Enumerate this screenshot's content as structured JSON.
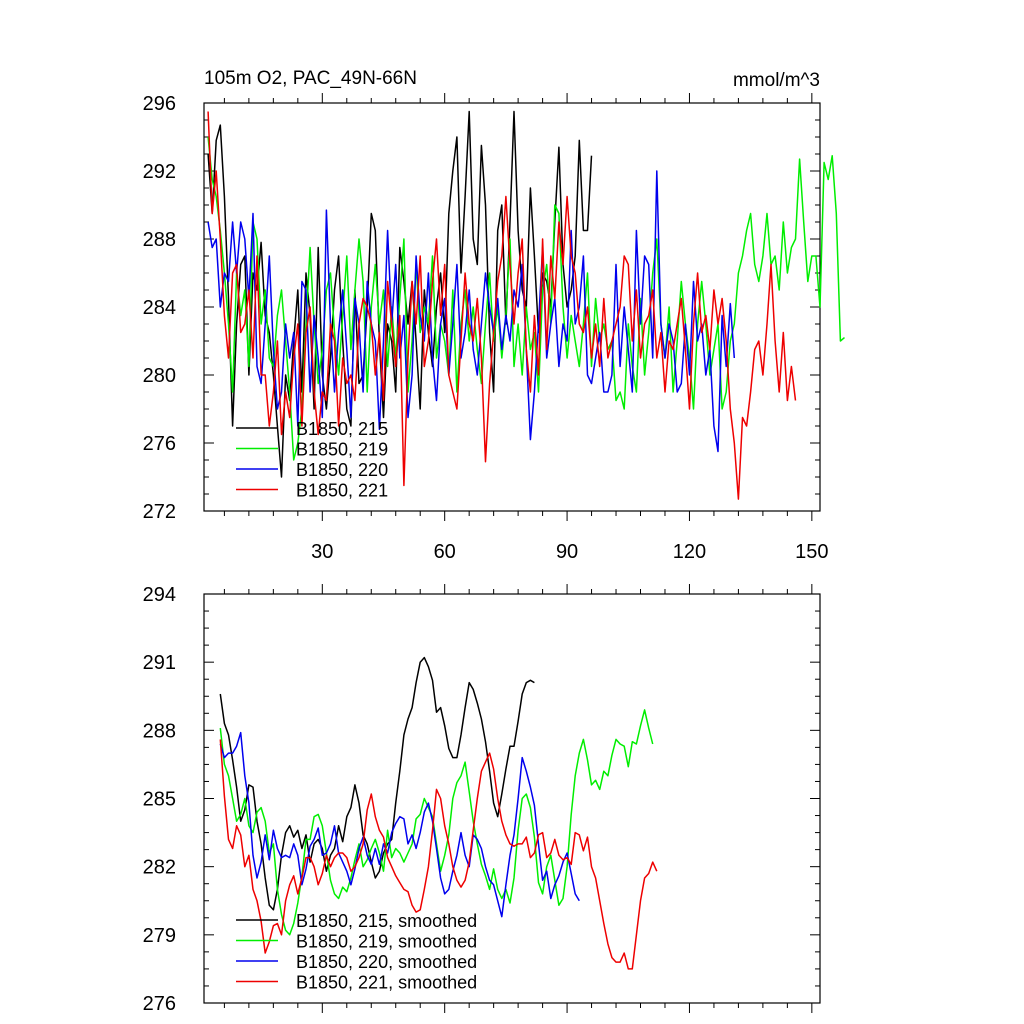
{
  "chart_data": [
    {
      "type": "line",
      "title": "105m O2, PAC_49N-66N",
      "units": "mmol/m^3",
      "xlim": [
        1,
        152
      ],
      "ylim": [
        272,
        296
      ],
      "xticks": [
        30,
        60,
        90,
        120,
        150
      ],
      "yticks": [
        272,
        276,
        280,
        284,
        288,
        292,
        296
      ],
      "legend_position": "bottom-left",
      "series": [
        {
          "name": "B1850, 215",
          "color": "#000000",
          "x_start": 2,
          "values": [
            293.0,
            289.5,
            293.8,
            294.7,
            290.5,
            284.5,
            277.0,
            283.0,
            286.5,
            287.0,
            280.0,
            286.0,
            285.0,
            287.8,
            283.5,
            282.5,
            280.0,
            277.0,
            274.0,
            280.0,
            278.5,
            282.0,
            285.0,
            279.0,
            286.0,
            283.5,
            278.0,
            287.5,
            280.0,
            278.0,
            281.0,
            285.0,
            287.0,
            282.0,
            278.0,
            277.0,
            285.0,
            279.5,
            280.0,
            284.0,
            289.5,
            288.5,
            282.0,
            277.5,
            283.0,
            282.0,
            279.0,
            287.5,
            285.5,
            283.0,
            285.5,
            282.0,
            278.0,
            285.0,
            282.5,
            280.5,
            284.0,
            286.0,
            282.5,
            289.5,
            292.0,
            294.0,
            286.0,
            290.5,
            295.5,
            288.0,
            286.5,
            293.5,
            290.0,
            282.5,
            279.0,
            288.5,
            290.0,
            283.0,
            289.0,
            295.5,
            288.5,
            285.0,
            284.0,
            291.0,
            287.0,
            282.5,
            286.0,
            285.5,
            284.0,
            289.0,
            293.4,
            286.5,
            284.0,
            285.0,
            287.0,
            293.8,
            288.5,
            288.5,
            292.9
          ]
        },
        {
          "name": "B1850, 219",
          "color": "#00ee00",
          "x_start": 2,
          "values": [
            294.0,
            291.5,
            290.5,
            288.5,
            286.0,
            283.0,
            279.0,
            286.0,
            283.5,
            285.0,
            280.5,
            289.0,
            288.0,
            283.0,
            285.0,
            281.0,
            280.5,
            283.5,
            285.0,
            282.0,
            279.0,
            275.0,
            276.0,
            278.0,
            283.0,
            287.5,
            283.0,
            279.5,
            281.5,
            285.0,
            286.0,
            282.5,
            280.0,
            283.5,
            287.0,
            281.5,
            285.0,
            288.0,
            285.5,
            279.0,
            284.0,
            286.5,
            283.0,
            285.0,
            280.5,
            284.0,
            281.0,
            284.5,
            288.0,
            279.0,
            282.0,
            286.5,
            282.5,
            284.0,
            283.0,
            287.0,
            281.0,
            283.0,
            282.0,
            280.0,
            285.0,
            279.0,
            283.0,
            285.0,
            282.0,
            284.0,
            281.5,
            279.5,
            283.0,
            286.0,
            282.0,
            284.0,
            281.0,
            283.5,
            288.0,
            280.5,
            283.0,
            280.0,
            284.0,
            281.5,
            282.5,
            279.0,
            285.0,
            286.5,
            283.0,
            290.0,
            289.5,
            284.0,
            281.0,
            283.5,
            282.0,
            280.5,
            283.0,
            286.0,
            280.5,
            284.5,
            282.0,
            283.0,
            281.5,
            282.0,
            278.5,
            279.0,
            278.0,
            283.0,
            280.5,
            279.0,
            284.5,
            280.0,
            282.5,
            286.0,
            288.0,
            283.0,
            281.0,
            284.0,
            279.0,
            282.0,
            285.5,
            283.0,
            281.0,
            278.0,
            283.0,
            285.5,
            283.0,
            280.0,
            281.5,
            283.0,
            278.0,
            279.0,
            282.0,
            283.0,
            286.0,
            287.0,
            288.5,
            289.5,
            286.5,
            285.5,
            287.0,
            289.5,
            286.5,
            287.0,
            285.0,
            289.0,
            286.0,
            287.5,
            288.0,
            292.7,
            289.0,
            285.5,
            287.0,
            287.0,
            284.0,
            292.5,
            291.5,
            292.9,
            289.5,
            282.0,
            282.2
          ]
        },
        {
          "name": "B1850, 220",
          "color": "#0000ee",
          "x_start": 2,
          "values": [
            289.0,
            287.5,
            288.0,
            284.0,
            286.0,
            285.5,
            289.0,
            286.0,
            289.0,
            288.0,
            284.5,
            289.5,
            280.5,
            279.5,
            283.0,
            287.0,
            281.5,
            278.0,
            279.0,
            283.0,
            281.0,
            282.5,
            277.0,
            285.5,
            285.0,
            279.0,
            283.5,
            281.0,
            277.5,
            289.7,
            283.0,
            279.0,
            282.5,
            285.0,
            281.5,
            277.5,
            284.5,
            283.0,
            279.0,
            285.5,
            283.0,
            282.0,
            276.8,
            282.0,
            288.5,
            283.0,
            286.5,
            281.0,
            283.5,
            277.5,
            280.0,
            287.0,
            283.5,
            282.0,
            286.0,
            281.0,
            278.5,
            283.0,
            284.5,
            280.0,
            283.0,
            286.5,
            281.0,
            282.5,
            285.0,
            281.5,
            280.0,
            283.0,
            286.0,
            284.0,
            282.5,
            284.5,
            281.5,
            283.5,
            282.0,
            285.0,
            284.0,
            286.5,
            281.5,
            276.2,
            279.0,
            283.0,
            287.5,
            281.0,
            283.0,
            284.5,
            280.5,
            283.0,
            282.0,
            288.5,
            283.0,
            284.0,
            287.0,
            280.0,
            279.5,
            281.0,
            282.5,
            279.0,
            279.0,
            280.0,
            286.5,
            280.5,
            284.0,
            281.5,
            279.0,
            288.5,
            283.0,
            287.0,
            286.5,
            281.0,
            292.0,
            283.0,
            281.0,
            283.0,
            282.0,
            279.0,
            279.5,
            283.0,
            280.0,
            285.5,
            282.0,
            283.0,
            280.0,
            281.5,
            277.0,
            275.5,
            283.5,
            280.5,
            284.2,
            281.0
          ]
        },
        {
          "name": "B1850, 221",
          "color": "#ee0000",
          "x_start": 2,
          "values": [
            295.5,
            289.5,
            292.0,
            288.0,
            283.5,
            281.0,
            286.0,
            286.5,
            282.5,
            283.0,
            285.0,
            281.0,
            287.0,
            280.0,
            280.0,
            277.0,
            279.0,
            282.0,
            276.5,
            279.0,
            277.5,
            281.0,
            283.0,
            277.0,
            282.5,
            284.0,
            279.0,
            276.5,
            279.0,
            278.5,
            283.0,
            282.0,
            277.0,
            281.0,
            279.5,
            280.0,
            278.5,
            283.0,
            284.5,
            284.0,
            283.0,
            280.0,
            282.5,
            278.5,
            285.5,
            283.0,
            280.5,
            283.5,
            273.5,
            281.0,
            285.5,
            283.0,
            287.0,
            280.5,
            282.0,
            285.5,
            288.0,
            283.5,
            286.5,
            280.0,
            279.0,
            278.0,
            282.0,
            286.0,
            283.0,
            282.0,
            284.5,
            281.0,
            274.9,
            279.5,
            282.5,
            285.5,
            287.0,
            290.5,
            286.5,
            283.0,
            286.0,
            288.0,
            281.5,
            279.0,
            283.5,
            280.0,
            288.0,
            281.5,
            287.0,
            284.5,
            289.0,
            286.5,
            290.5,
            287.0,
            286.0,
            283.0,
            282.5,
            284.0,
            281.0,
            283.0,
            280.5,
            284.5,
            281.0,
            282.0,
            283.0,
            284.0,
            287.0,
            286.5,
            282.0,
            285.0,
            281.0,
            283.0,
            283.5,
            285.0,
            281.0,
            282.5,
            279.0,
            282.0,
            281.5,
            283.0,
            284.5,
            281.5,
            278.0,
            283.0,
            286.0,
            282.5,
            283.5,
            281.5,
            285.0,
            283.0,
            284.5,
            282.0,
            278.0,
            276.0,
            272.7,
            277.5,
            277.0,
            279.0,
            281.5,
            282.0,
            280.0,
            283.0,
            286.5,
            282.0,
            279.0,
            282.5,
            278.5,
            280.5,
            278.5
          ]
        }
      ]
    },
    {
      "type": "line",
      "title": "",
      "xlim": [
        1,
        152
      ],
      "ylim": [
        276,
        294
      ],
      "xticks": [
        30,
        60,
        90,
        120,
        150
      ],
      "yticks": [
        276,
        279,
        282,
        285,
        288,
        291,
        294
      ],
      "legend_position": "bottom-left",
      "series": [
        {
          "name": "B1850, 215, smoothed",
          "color": "#000000",
          "x_start": 5,
          "values": [
            289.6,
            288.3,
            287.8,
            286.7,
            285.5,
            284.0,
            284.5,
            285.6,
            285.5,
            284.0,
            283.0,
            281.5,
            280.3,
            280.1,
            281.0,
            282.5,
            283.5,
            283.8,
            283.3,
            283.6,
            282.8,
            283.4,
            282.2,
            283.0,
            283.2,
            282.8,
            281.8,
            282.5,
            282.8,
            283.8,
            283.1,
            284.2,
            284.6,
            285.6,
            284.8,
            283.4,
            283.0,
            282.2,
            281.5,
            281.8,
            282.6,
            283.0,
            283.2,
            284.8,
            286.2,
            287.8,
            288.5,
            289.0,
            290.1,
            291.0,
            291.2,
            290.8,
            290.2,
            288.8,
            289.0,
            288.2,
            287.2,
            286.8,
            286.8,
            287.8,
            289.0,
            290.1,
            289.8,
            289.2,
            288.5,
            287.5,
            286.2,
            284.8,
            284.2,
            285.2,
            286.3,
            287.3,
            287.3,
            288.4,
            289.6,
            290.1,
            290.2,
            290.1
          ]
        },
        {
          "name": "B1850, 219, smoothed",
          "color": "#00ee00",
          "x_start": 5,
          "values": [
            288.1,
            286.5,
            286.0,
            285.0,
            284.0,
            284.3,
            285.0,
            283.8,
            283.5,
            284.4,
            284.6,
            284.0,
            282.6,
            283.0,
            281.0,
            279.9,
            279.2,
            279.0,
            279.5,
            280.4,
            281.6,
            283.2,
            283.2,
            284.2,
            284.3,
            283.8,
            282.6,
            281.4,
            280.8,
            280.6,
            281.1,
            280.9,
            281.5,
            282.3,
            283.0,
            282.0,
            282.3,
            282.8,
            283.2,
            282.6,
            281.8,
            283.6,
            282.4,
            282.8,
            282.6,
            282.2,
            282.6,
            283.0,
            284.1,
            284.3,
            285.0,
            284.6,
            284.2,
            283.0,
            281.8,
            282.5,
            283.4,
            285.0,
            285.7,
            286.0,
            286.6,
            285.3,
            284.0,
            283.0,
            282.1,
            281.6,
            281.0,
            281.9,
            281.0,
            280.6,
            281.0,
            280.4,
            281.5,
            283.6,
            285.0,
            285.2,
            284.6,
            283.3,
            281.3,
            280.8,
            282.0,
            282.5,
            281.4,
            280.3,
            280.6,
            282.0,
            284.3,
            286.0,
            287.0,
            287.6,
            286.7,
            285.6,
            285.8,
            285.4,
            286.2,
            286.0,
            286.9,
            287.6,
            287.4,
            287.3,
            286.4,
            287.5,
            287.4,
            288.2,
            288.9,
            288.1,
            287.4
          ]
        },
        {
          "name": "B1850, 220, smoothed",
          "color": "#0000ee",
          "x_start": 5,
          "values": [
            287.4,
            286.8,
            287.0,
            287.0,
            287.3,
            287.9,
            286.0,
            284.8,
            282.5,
            281.5,
            282.2,
            283.4,
            282.3,
            283.6,
            282.8,
            282.4,
            282.5,
            282.4,
            283.0,
            282.5,
            281.2,
            281.9,
            282.9,
            283.2,
            283.7,
            282.5,
            282.6,
            283.0,
            283.8,
            282.6,
            282.2,
            281.8,
            281.2,
            281.9,
            282.8,
            283.3,
            282.5,
            282.1,
            282.8,
            282.1,
            283.0,
            282.6,
            283.5,
            283.9,
            284.2,
            284.1,
            283.0,
            283.4,
            282.8,
            283.5,
            284.4,
            284.8,
            284.0,
            282.8,
            281.5,
            280.8,
            281.0,
            281.8,
            282.5,
            283.5,
            282.5,
            282.0,
            283.4,
            283.2,
            282.8,
            282.0,
            281.4,
            281.2,
            280.5,
            279.8,
            281.2,
            282.5,
            283.4,
            285.0,
            286.8,
            286.2,
            285.5,
            284.7,
            283.0,
            281.4,
            281.8,
            280.6,
            281.2,
            281.6,
            282.2,
            282.6,
            281.7,
            280.8,
            280.5
          ]
        },
        {
          "name": "B1850, 221, smoothed",
          "color": "#ee0000",
          "x_start": 5,
          "values": [
            287.6,
            285.1,
            283.2,
            282.8,
            283.8,
            283.4,
            282.0,
            282.5,
            281.0,
            280.5,
            279.6,
            278.2,
            278.7,
            279.4,
            279.5,
            279.0,
            280.5,
            281.2,
            281.6,
            280.8,
            281.5,
            282.4,
            282.4,
            282.0,
            281.2,
            281.7,
            282.5,
            282.0,
            282.4,
            282.6,
            282.6,
            282.4,
            281.8,
            282.0,
            282.4,
            283.0,
            284.5,
            285.2,
            284.2,
            283.6,
            283.3,
            282.4,
            282.0,
            281.6,
            281.3,
            281.0,
            280.9,
            280.3,
            280.0,
            280.1,
            281.0,
            282.0,
            283.6,
            285.4,
            285.0,
            283.8,
            283.0,
            282.0,
            281.4,
            281.1,
            281.4,
            282.2,
            283.6,
            285.0,
            286.2,
            286.6,
            287.0,
            286.3,
            285.0,
            284.0,
            283.4,
            283.0,
            282.9,
            283.0,
            283.0,
            283.3,
            282.4,
            282.6,
            283.4,
            283.5,
            282.4,
            282.6,
            283.2,
            282.5,
            282.3,
            282.4,
            282.1,
            283.5,
            283.4,
            282.7,
            283.3,
            282.0,
            281.5,
            280.5,
            279.5,
            278.6,
            278.0,
            277.8,
            277.8,
            278.2,
            277.5,
            277.5,
            279.0,
            280.5,
            281.5,
            281.7,
            282.2,
            281.8
          ]
        }
      ]
    }
  ]
}
